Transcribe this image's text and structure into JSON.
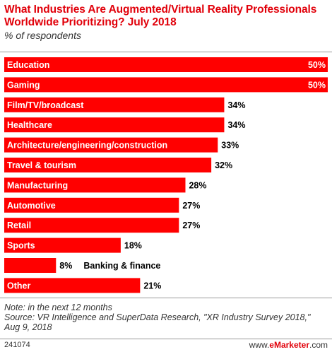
{
  "header": {
    "title": "What Industries Are Augmented/Virtual Reality Professionals Worldwide Prioritizing? July 2018",
    "subtitle": "% of respondents"
  },
  "chart_data": {
    "type": "bar",
    "orientation": "horizontal",
    "title": "What Industries Are Augmented/Virtual Reality Professionals Worldwide Prioritizing? July 2018",
    "subtitle": "% of respondents",
    "categories": [
      "Education",
      "Gaming",
      "Film/TV/broadcast",
      "Healthcare",
      "Architecture/engineering/construction",
      "Travel & tourism",
      "Manufacturing",
      "Automotive",
      "Retail",
      "Sports",
      "Banking & finance",
      "Other"
    ],
    "values": [
      50,
      50,
      34,
      34,
      33,
      32,
      28,
      27,
      27,
      18,
      8,
      21
    ],
    "value_labels": [
      "50%",
      "50%",
      "34%",
      "34%",
      "33%",
      "32%",
      "28%",
      "27%",
      "27%",
      "18%",
      "8%",
      "21%"
    ],
    "xlim": [
      0,
      50
    ],
    "grid": false,
    "bar_color": "#ff0000"
  },
  "notes": {
    "note": "Note: in the next 12 months",
    "source": "Source: VR Intelligence and SuperData Research, \"XR Industry Survey 2018,\" Aug 9, 2018"
  },
  "footer": {
    "chart_id": "241074",
    "brand_prefix": "www.",
    "brand_name": "eMarketer",
    "brand_suffix": ".com"
  }
}
